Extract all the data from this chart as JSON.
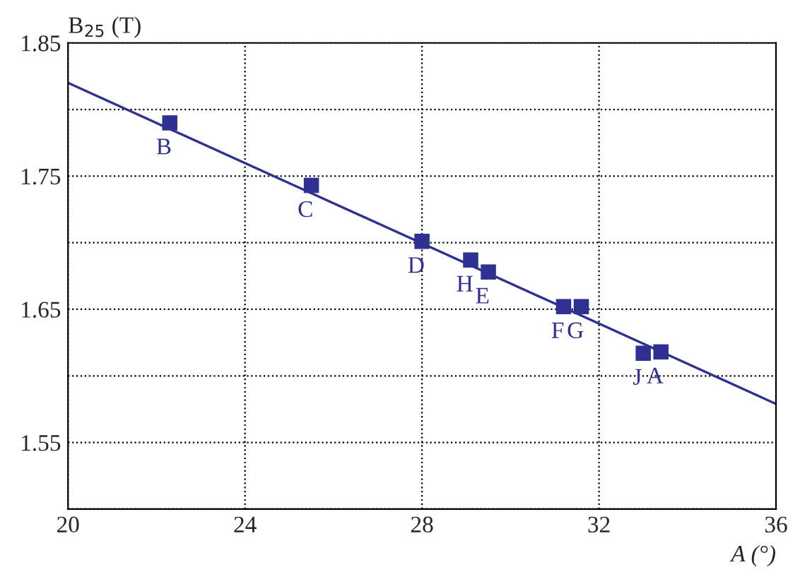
{
  "chart_data": {
    "type": "scatter",
    "xlabel": "A (°)",
    "ylabel": "B$_{25}$ (T)",
    "xlim": [
      20,
      36
    ],
    "xticks": [
      20,
      24,
      28,
      32,
      36
    ],
    "ylim": [
      1.5,
      1.85
    ],
    "yticks": [
      {
        "value": 1.5,
        "label": null
      },
      1.55,
      {
        "value": 1.6,
        "label": null
      },
      1.65,
      {
        "value": 1.7,
        "label": null
      },
      1.75,
      {
        "value": 1.8,
        "label": null
      },
      1.85
    ],
    "grid": true,
    "series": [
      {
        "marker": "square",
        "color": "#2e3192",
        "x": [
          22.3,
          25.5,
          28.0,
          29.1,
          29.5,
          31.2,
          31.6,
          33.0,
          33.4
        ],
        "values": [
          1.79,
          1.743,
          1.701,
          1.687,
          1.678,
          1.652,
          1.652,
          1.617,
          1.618
        ]
      },
      {
        "type": "line",
        "color": "#2e3192",
        "x": [
          20,
          36
        ],
        "values": [
          1.82,
          1.579
        ]
      }
    ],
    "annotations": [
      {
        "text": "B",
        "x": 22.3,
        "y": 1.79
      },
      {
        "text": "C",
        "x": 25.5,
        "y": 1.743
      },
      {
        "text": "D",
        "x": 28.0,
        "y": 1.701
      },
      {
        "text": "H",
        "x": 29.1,
        "y": 1.687
      },
      {
        "text": "E",
        "x": 29.5,
        "y": 1.678
      },
      {
        "text": "F",
        "x": 31.2,
        "y": 1.652
      },
      {
        "text": "G",
        "x": 31.6,
        "y": 1.652
      },
      {
        "text": "J",
        "x": 33.0,
        "y": 1.617
      },
      {
        "text": "A",
        "x": 33.4,
        "y": 1.618
      }
    ]
  }
}
